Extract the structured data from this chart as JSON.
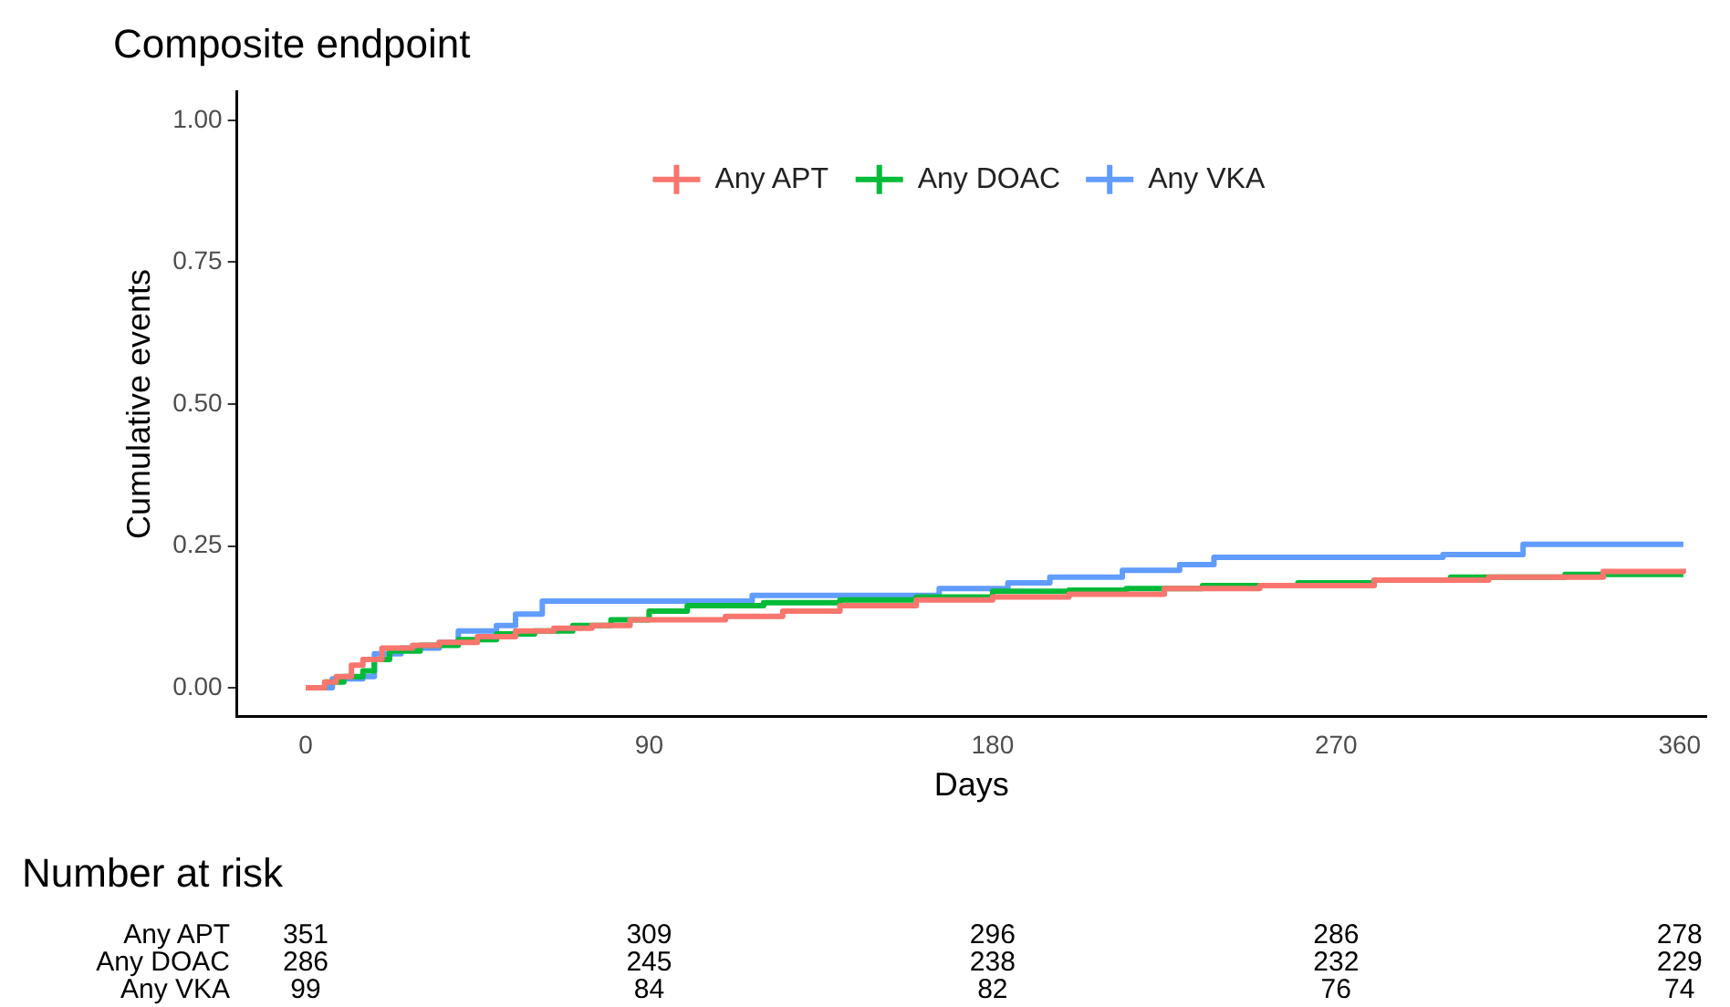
{
  "chart_data": {
    "type": "step",
    "title": "Composite endpoint",
    "xlabel": "Days",
    "ylabel": "Cumulative events",
    "xlim": [
      -18,
      367
    ],
    "xticks": [
      0,
      90,
      180,
      270,
      360
    ],
    "ylim": [
      -0.05,
      1.05
    ],
    "yticks": [
      {
        "value": 0,
        "label": "0.00"
      },
      {
        "value": 0.25,
        "label": "0.25"
      },
      {
        "value": 0.5,
        "label": "0.50"
      },
      {
        "value": 0.75,
        "label": "0.75"
      },
      {
        "value": 1,
        "label": "1.00"
      }
    ],
    "grid": false,
    "legend": "top",
    "line_style": "solid",
    "series": [
      {
        "name": "Any APT",
        "color": "#f8766d",
        "x": [
          0,
          5,
          8,
          12,
          15,
          20,
          28,
          35,
          45,
          55,
          65,
          75,
          85,
          100,
          110,
          125,
          140,
          160,
          180,
          200,
          225,
          250,
          280,
          310,
          340,
          361
        ],
        "values": [
          0,
          0.01,
          0.02,
          0.04,
          0.05,
          0.07,
          0.075,
          0.08,
          0.09,
          0.1,
          0.105,
          0.11,
          0.12,
          0.12,
          0.126,
          0.135,
          0.145,
          0.155,
          0.16,
          0.165,
          0.175,
          0.18,
          0.19,
          0.195,
          0.205,
          0.21
        ]
      },
      {
        "name": "Any DOAC",
        "color": "#00ba38",
        "x": [
          0,
          5,
          10,
          15,
          18,
          22,
          30,
          40,
          50,
          60,
          70,
          80,
          90,
          100,
          120,
          140,
          160,
          180,
          200,
          215,
          235,
          260,
          280,
          300,
          330,
          361
        ],
        "values": [
          0,
          0.01,
          0.02,
          0.03,
          0.05,
          0.065,
          0.075,
          0.085,
          0.095,
          0.1,
          0.11,
          0.12,
          0.135,
          0.145,
          0.15,
          0.155,
          0.16,
          0.17,
          0.172,
          0.175,
          0.18,
          0.185,
          0.19,
          0.195,
          0.2,
          0.2
        ]
      },
      {
        "name": "Any VKA",
        "color": "#619cff",
        "x": [
          0,
          7,
          15,
          18,
          25,
          35,
          40,
          50,
          55,
          62,
          117,
          166,
          184,
          195,
          214,
          229,
          238,
          298,
          319,
          361
        ],
        "values": [
          0,
          0.016,
          0.02,
          0.06,
          0.07,
          0.08,
          0.1,
          0.11,
          0.13,
          0.153,
          0.163,
          0.175,
          0.185,
          0.195,
          0.207,
          0.217,
          0.23,
          0.235,
          0.253,
          0.253
        ]
      }
    ],
    "annotations": [
      "Number at risk",
      "351",
      "309",
      "296",
      "286",
      "278",
      "286",
      "245",
      "238",
      "232",
      "229",
      "99",
      "84",
      "82",
      "76",
      "74"
    ]
  }
}
